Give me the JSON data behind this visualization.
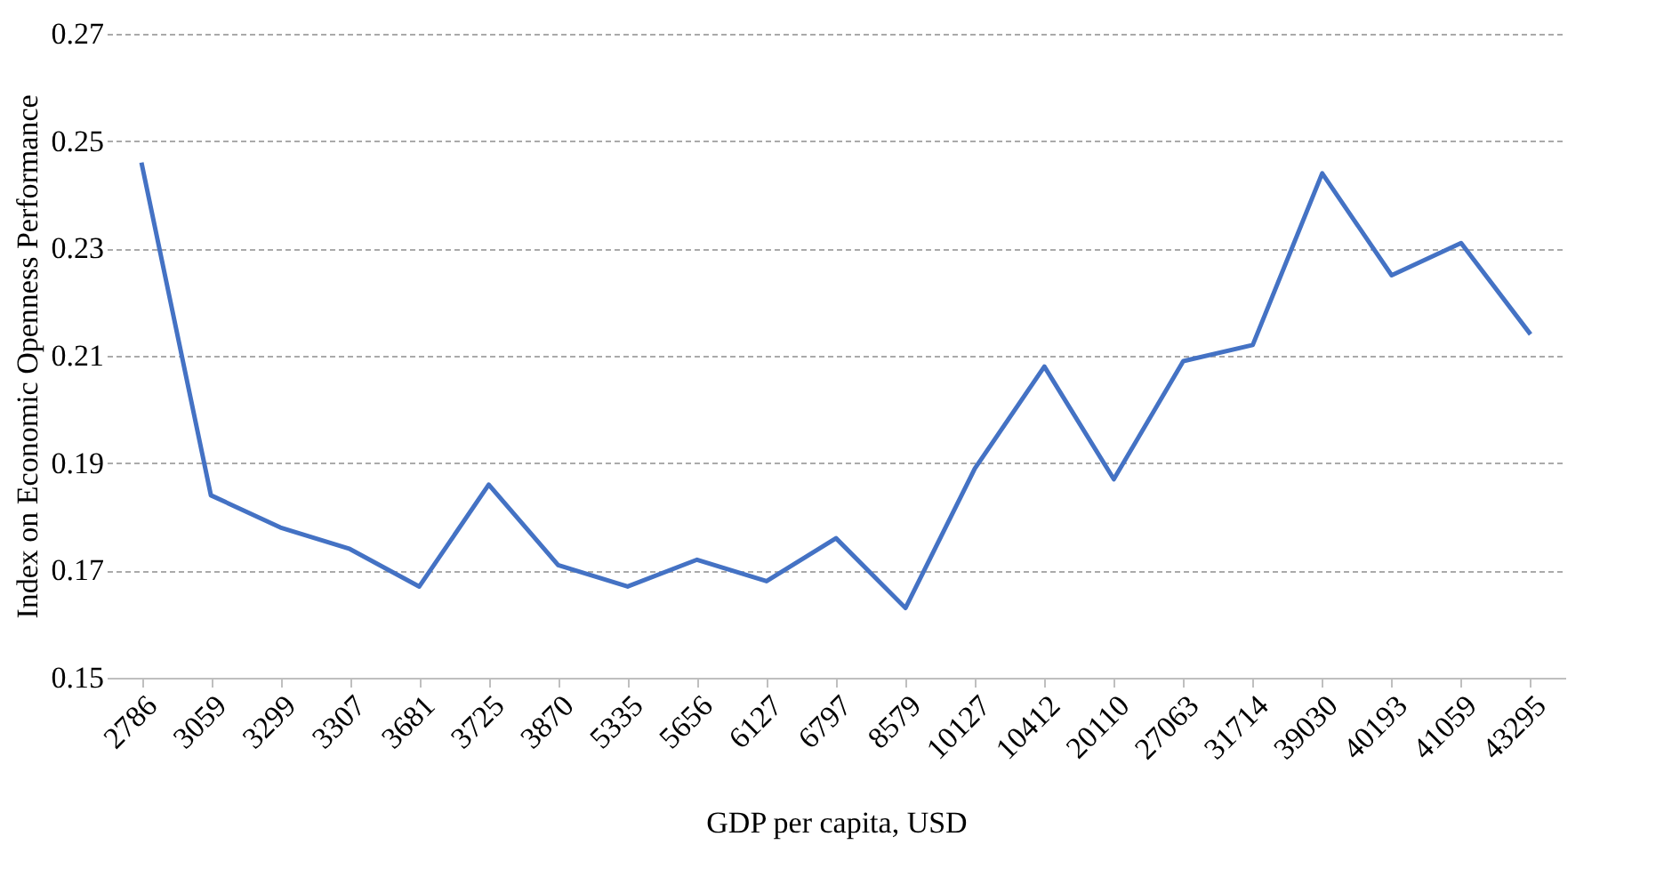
{
  "chart_data": {
    "type": "line",
    "xlabel": "GDP per capita, USD",
    "ylabel": "Index on Economic Openness Performance",
    "categories": [
      "2786",
      "3059",
      "3299",
      "3307",
      "3681",
      "3725",
      "3870",
      "5335",
      "5656",
      "6127",
      "6797",
      "8579",
      "10127",
      "10412",
      "20110",
      "27063",
      "31714",
      "39030",
      "40193",
      "41059",
      "43295"
    ],
    "series": [
      {
        "color": "#4472c4",
        "values": [
          0.246,
          0.184,
          0.178,
          0.174,
          0.167,
          0.186,
          0.171,
          0.167,
          0.172,
          0.168,
          0.176,
          0.163,
          0.189,
          0.208,
          0.187,
          0.209,
          0.212,
          0.244,
          0.225,
          0.231,
          0.214
        ]
      }
    ],
    "ylim": [
      0.15,
      0.27
    ],
    "yticks": [
      0.15,
      0.17,
      0.19,
      0.21,
      0.23,
      0.25,
      0.27
    ],
    "grid": "y",
    "legend": false,
    "marker": "none",
    "line_style": "solid"
  }
}
